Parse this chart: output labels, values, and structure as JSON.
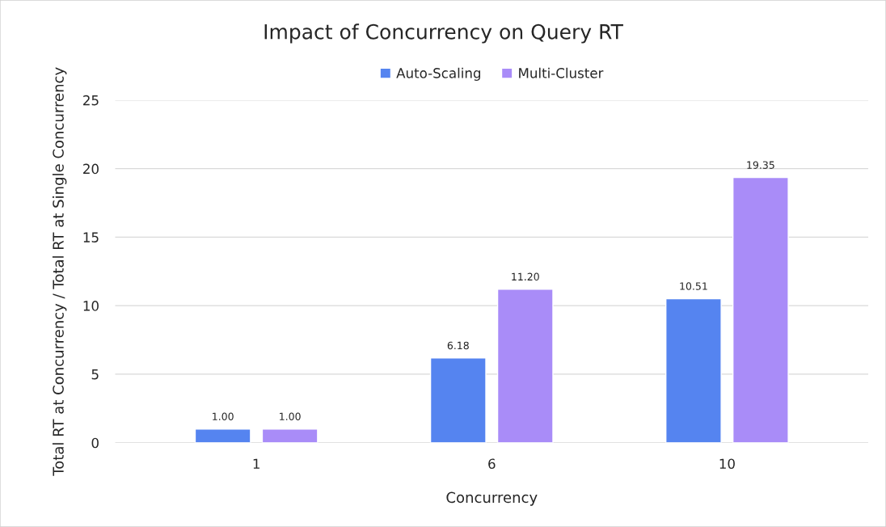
{
  "chart_data": {
    "type": "bar",
    "title": "Impact of Concurrency on Query RT",
    "xlabel": "Concurrency",
    "ylabel": "Total RT at Concurrency / Total RT at Single Concurrency",
    "categories": [
      "1",
      "6",
      "10"
    ],
    "series": [
      {
        "name": "Auto-Scaling",
        "color": "#5584f0",
        "values": [
          1.0,
          6.18,
          10.51
        ],
        "value_labels": [
          "1.00",
          "6.18",
          "10.51"
        ]
      },
      {
        "name": "Multi-Cluster",
        "color": "#a98cf8",
        "values": [
          1.0,
          11.2,
          19.35
        ],
        "value_labels": [
          "1.00",
          "11.20",
          "19.35"
        ]
      }
    ],
    "ylim": [
      0,
      25
    ],
    "yticks": [
      0,
      5,
      10,
      15,
      20,
      25
    ],
    "grid": "y",
    "legend": "top"
  }
}
